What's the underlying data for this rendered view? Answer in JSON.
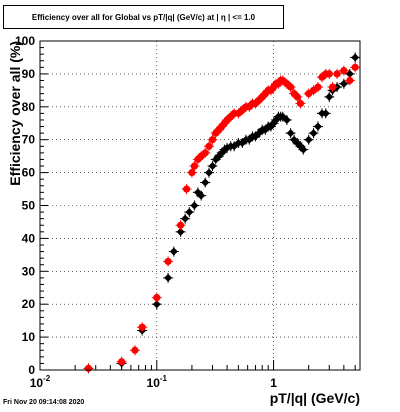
{
  "chart_data": {
    "type": "scatter",
    "title": "Efficiency over all for Global vs pT/|q| (GeV/c) at |  η | <= 1.0",
    "xlabel": "pT/|q| (GeV/c)",
    "ylabel": "Efficiency over all (%)",
    "xscale": "log",
    "xlim": [
      0.01,
      5.5
    ],
    "ylim": [
      0,
      100
    ],
    "xticks": [
      {
        "value": 0.01,
        "label": "10",
        "sup": "-2"
      },
      {
        "value": 0.1,
        "label": "10",
        "sup": "-1"
      },
      {
        "value": 1,
        "label": "1",
        "sup": ""
      }
    ],
    "yticks": [
      0,
      10,
      20,
      30,
      40,
      50,
      60,
      70,
      80,
      90,
      100
    ],
    "grid": true,
    "series": [
      {
        "color": "#000000",
        "x": [
          0.026,
          0.05,
          0.075,
          0.1,
          0.125,
          0.14,
          0.16,
          0.175,
          0.19,
          0.21,
          0.225,
          0.24,
          0.26,
          0.28,
          0.3,
          0.32,
          0.34,
          0.36,
          0.38,
          0.4,
          0.43,
          0.46,
          0.5,
          0.54,
          0.58,
          0.62,
          0.66,
          0.7,
          0.75,
          0.8,
          0.85,
          0.9,
          0.95,
          1.0,
          1.05,
          1.1,
          1.15,
          1.2,
          1.3,
          1.4,
          1.5,
          1.6,
          1.7,
          1.8,
          2.0,
          2.2,
          2.4,
          2.6,
          2.8,
          3.0,
          3.2,
          3.5,
          4.0,
          4.5,
          5.0
        ],
        "y": [
          0.5,
          2,
          12,
          20,
          28,
          36,
          42,
          46,
          48,
          50,
          54,
          53,
          57,
          60,
          62,
          64,
          65,
          66,
          67,
          67.5,
          68,
          68,
          69,
          69,
          70,
          70,
          71,
          71,
          72,
          73,
          73,
          74,
          74,
          75,
          76,
          77,
          77,
          77,
          76,
          72,
          70,
          69,
          68,
          67,
          70,
          72,
          74,
          78,
          78,
          83,
          85,
          86,
          87,
          90,
          95
        ]
      },
      {
        "color": "#ff0000",
        "x": [
          0.026,
          0.05,
          0.065,
          0.075,
          0.1,
          0.125,
          0.16,
          0.18,
          0.2,
          0.21,
          0.225,
          0.24,
          0.26,
          0.28,
          0.3,
          0.32,
          0.34,
          0.36,
          0.38,
          0.4,
          0.43,
          0.46,
          0.5,
          0.54,
          0.58,
          0.62,
          0.66,
          0.7,
          0.75,
          0.8,
          0.85,
          0.9,
          0.95,
          1.0,
          1.05,
          1.1,
          1.15,
          1.2,
          1.3,
          1.4,
          1.5,
          1.6,
          1.7,
          2.0,
          2.2,
          2.4,
          2.6,
          2.8,
          3.0,
          3.2,
          3.5,
          4.0,
          4.5,
          5.0
        ],
        "y": [
          0.5,
          2.5,
          6,
          13,
          22,
          33,
          44,
          55,
          60,
          62,
          64,
          65,
          66,
          68,
          70,
          72,
          73,
          74,
          75,
          76,
          77,
          78,
          78,
          79,
          80,
          80,
          81,
          81,
          82,
          83,
          84,
          85,
          85,
          86,
          87,
          87,
          88,
          88,
          87,
          86,
          84,
          83,
          81,
          84,
          85,
          86,
          89,
          90,
          90,
          86,
          90,
          91,
          88,
          92
        ]
      }
    ]
  },
  "footer": "Fri Nov 20 09:14:08 2020"
}
